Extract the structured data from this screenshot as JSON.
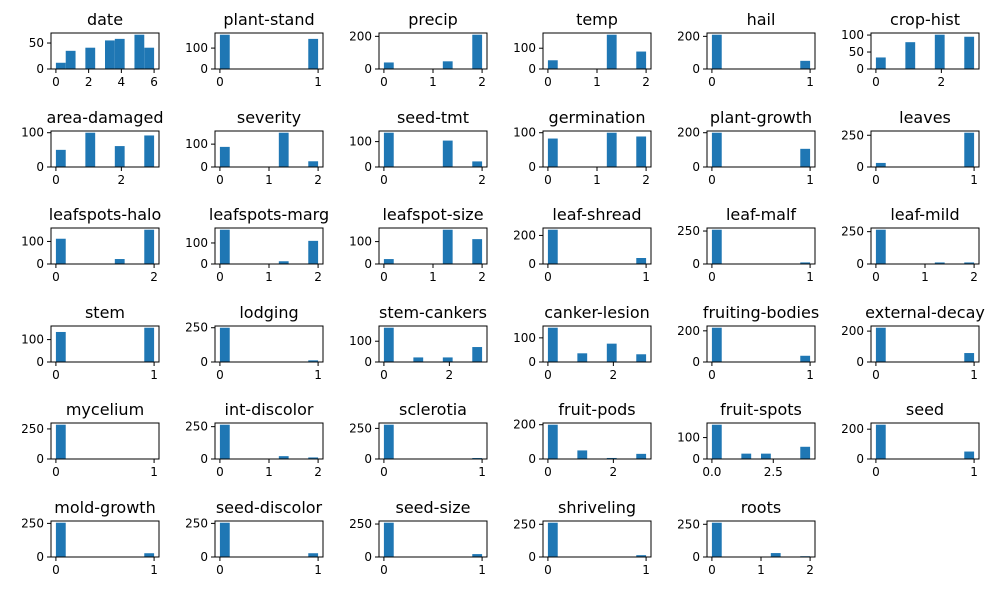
{
  "chart_data": [
    {
      "type": "bar",
      "title": "date",
      "xlim": [
        -0.3,
        6.3
      ],
      "ylim": [
        0,
        66
      ],
      "xticks": [
        0,
        2,
        4,
        6
      ],
      "yticks": [
        0,
        50
      ],
      "bins": [
        {
          "x0": 0,
          "x1": 0.6,
          "value": 12
        },
        {
          "x0": 0.6,
          "x1": 1.2,
          "value": 35
        },
        {
          "x0": 1.8,
          "x1": 2.4,
          "value": 41
        },
        {
          "x0": 3,
          "x1": 3.6,
          "value": 55
        },
        {
          "x0": 3.6,
          "x1": 4.2,
          "value": 58
        },
        {
          "x0": 4.8,
          "x1": 5.4,
          "value": 66
        },
        {
          "x0": 5.4,
          "x1": 6,
          "value": 41
        }
      ]
    },
    {
      "type": "bar",
      "title": "plant-stand",
      "xlim": [
        -0.05,
        1.05
      ],
      "ylim": [
        0,
        164
      ],
      "xticks": [
        0,
        1
      ],
      "yticks": [
        0,
        100
      ],
      "bins": [
        {
          "x0": 0,
          "x1": 0.1,
          "value": 164
        },
        {
          "x0": 0.9,
          "x1": 1,
          "value": 144
        }
      ]
    },
    {
      "type": "bar",
      "title": "precip",
      "xlim": [
        -0.1,
        2.1
      ],
      "ylim": [
        0,
        210
      ],
      "xticks": [
        0,
        1,
        2
      ],
      "yticks": [
        0,
        200
      ],
      "bins": [
        {
          "x0": 0,
          "x1": 0.2,
          "value": 40
        },
        {
          "x0": 1.2,
          "x1": 1.4,
          "value": 47
        },
        {
          "x0": 1.8,
          "x1": 2,
          "value": 210
        }
      ]
    },
    {
      "type": "bar",
      "title": "temp",
      "xlim": [
        -0.1,
        2.1
      ],
      "ylim": [
        0,
        165
      ],
      "xticks": [
        0,
        1,
        2
      ],
      "yticks": [
        0,
        100
      ],
      "bins": [
        {
          "x0": 0,
          "x1": 0.2,
          "value": 42
        },
        {
          "x0": 1.2,
          "x1": 1.4,
          "value": 165
        },
        {
          "x0": 1.8,
          "x1": 2,
          "value": 84
        }
      ]
    },
    {
      "type": "bar",
      "title": "hail",
      "xlim": [
        -0.05,
        1.05
      ],
      "ylim": [
        0,
        210
      ],
      "xticks": [
        0,
        1
      ],
      "yticks": [
        0,
        200
      ],
      "bins": [
        {
          "x0": 0,
          "x1": 0.1,
          "value": 210
        },
        {
          "x0": 0.9,
          "x1": 1,
          "value": 50
        }
      ]
    },
    {
      "type": "bar",
      "title": "crop-hist",
      "xlim": [
        -0.15,
        3.15
      ],
      "ylim": [
        0,
        101
      ],
      "xticks": [
        0,
        2
      ],
      "yticks": [
        0,
        50,
        100
      ],
      "bins": [
        {
          "x0": 0,
          "x1": 0.3,
          "value": 34
        },
        {
          "x0": 0.9,
          "x1": 1.2,
          "value": 79
        },
        {
          "x0": 1.8,
          "x1": 2.1,
          "value": 101
        },
        {
          "x0": 2.7,
          "x1": 3,
          "value": 95
        }
      ]
    },
    {
      "type": "bar",
      "title": "area-damaged",
      "xlim": [
        -0.15,
        3.15
      ],
      "ylim": [
        0,
        100
      ],
      "xticks": [
        0,
        2
      ],
      "yticks": [
        0,
        100
      ],
      "bins": [
        {
          "x0": 0,
          "x1": 0.3,
          "value": 50
        },
        {
          "x0": 0.9,
          "x1": 1.2,
          "value": 100
        },
        {
          "x0": 1.8,
          "x1": 2.1,
          "value": 61
        },
        {
          "x0": 2.7,
          "x1": 3,
          "value": 92
        }
      ]
    },
    {
      "type": "bar",
      "title": "severity",
      "xlim": [
        -0.1,
        2.1
      ],
      "ylim": [
        0,
        150
      ],
      "xticks": [
        0,
        1,
        2
      ],
      "yticks": [
        0,
        100
      ],
      "bins": [
        {
          "x0": 0,
          "x1": 0.2,
          "value": 88
        },
        {
          "x0": 1.2,
          "x1": 1.4,
          "value": 150
        },
        {
          "x0": 1.8,
          "x1": 2,
          "value": 25
        }
      ]
    },
    {
      "type": "bar",
      "title": "seed-tmt",
      "xlim": [
        -0.1,
        2.1
      ],
      "ylim": [
        0,
        135
      ],
      "xticks": [
        0,
        2
      ],
      "yticks": [
        0,
        100
      ],
      "bins": [
        {
          "x0": 0,
          "x1": 0.2,
          "value": 135
        },
        {
          "x0": 1.2,
          "x1": 1.4,
          "value": 104
        },
        {
          "x0": 1.8,
          "x1": 2,
          "value": 22
        }
      ]
    },
    {
      "type": "bar",
      "title": "germination",
      "xlim": [
        -0.1,
        2.1
      ],
      "ylim": [
        0,
        100
      ],
      "xticks": [
        0,
        1,
        2
      ],
      "yticks": [
        0,
        100
      ],
      "bins": [
        {
          "x0": 0,
          "x1": 0.2,
          "value": 83
        },
        {
          "x0": 1.2,
          "x1": 1.4,
          "value": 100
        },
        {
          "x0": 1.8,
          "x1": 2,
          "value": 89
        }
      ]
    },
    {
      "type": "bar",
      "title": "plant-growth",
      "xlim": [
        -0.05,
        1.05
      ],
      "ylim": [
        0,
        200
      ],
      "xticks": [
        0,
        1
      ],
      "yticks": [
        0,
        200
      ],
      "bins": [
        {
          "x0": 0,
          "x1": 0.1,
          "value": 200
        },
        {
          "x0": 0.9,
          "x1": 1,
          "value": 106
        }
      ]
    },
    {
      "type": "bar",
      "title": "leaves",
      "xlim": [
        -0.05,
        1.05
      ],
      "ylim": [
        0,
        270
      ],
      "xticks": [
        0,
        1
      ],
      "yticks": [
        0,
        250
      ],
      "bins": [
        {
          "x0": 0,
          "x1": 0.1,
          "value": 32
        },
        {
          "x0": 0.9,
          "x1": 1,
          "value": 270
        }
      ]
    },
    {
      "type": "bar",
      "title": "leafspots-halo",
      "xlim": [
        -0.1,
        2.1
      ],
      "ylim": [
        0,
        152
      ],
      "xticks": [
        0,
        2
      ],
      "yticks": [
        0,
        100
      ],
      "bins": [
        {
          "x0": 0,
          "x1": 0.2,
          "value": 112
        },
        {
          "x0": 1.2,
          "x1": 1.4,
          "value": 22
        },
        {
          "x0": 1.8,
          "x1": 2,
          "value": 152
        }
      ]
    },
    {
      "type": "bar",
      "title": "leafspots-marg",
      "xlim": [
        -0.1,
        2.1
      ],
      "ylim": [
        0,
        163
      ],
      "xticks": [
        0,
        1,
        2
      ],
      "yticks": [
        0,
        100
      ],
      "bins": [
        {
          "x0": 0,
          "x1": 0.2,
          "value": 163
        },
        {
          "x0": 1.2,
          "x1": 1.4,
          "value": 13
        },
        {
          "x0": 1.8,
          "x1": 2,
          "value": 110
        }
      ]
    },
    {
      "type": "bar",
      "title": "leafspot-size",
      "xlim": [
        -0.1,
        2.1
      ],
      "ylim": [
        0,
        153
      ],
      "xticks": [
        0,
        1,
        2
      ],
      "yticks": [
        0,
        100
      ],
      "bins": [
        {
          "x0": 0,
          "x1": 0.2,
          "value": 22
        },
        {
          "x0": 1.2,
          "x1": 1.4,
          "value": 153
        },
        {
          "x0": 1.8,
          "x1": 2,
          "value": 111
        }
      ]
    },
    {
      "type": "bar",
      "title": "leaf-shread",
      "xlim": [
        -0.05,
        1.05
      ],
      "ylim": [
        0,
        240
      ],
      "xticks": [
        0,
        1
      ],
      "yticks": [
        0,
        200
      ],
      "bins": [
        {
          "x0": 0,
          "x1": 0.1,
          "value": 240
        },
        {
          "x0": 0.9,
          "x1": 1,
          "value": 42
        }
      ]
    },
    {
      "type": "bar",
      "title": "leaf-malf",
      "xlim": [
        -0.05,
        1.05
      ],
      "ylim": [
        0,
        260
      ],
      "xticks": [
        0,
        1
      ],
      "yticks": [
        0,
        250
      ],
      "bins": [
        {
          "x0": 0,
          "x1": 0.1,
          "value": 260
        },
        {
          "x0": 0.9,
          "x1": 1,
          "value": 12
        }
      ]
    },
    {
      "type": "bar",
      "title": "leaf-mild",
      "xlim": [
        -0.1,
        2.1
      ],
      "ylim": [
        0,
        265
      ],
      "xticks": [
        0,
        1,
        2
      ],
      "yticks": [
        0,
        250
      ],
      "bins": [
        {
          "x0": 0,
          "x1": 0.2,
          "value": 265
        },
        {
          "x0": 1.2,
          "x1": 1.4,
          "value": 12
        },
        {
          "x0": 1.8,
          "x1": 2,
          "value": 12
        }
      ]
    },
    {
      "type": "bar",
      "title": "stem",
      "xlim": [
        -0.05,
        1.05
      ],
      "ylim": [
        0,
        153
      ],
      "xticks": [
        0,
        1
      ],
      "yticks": [
        0,
        100
      ],
      "bins": [
        {
          "x0": 0,
          "x1": 0.1,
          "value": 134
        },
        {
          "x0": 0.9,
          "x1": 1,
          "value": 153
        }
      ]
    },
    {
      "type": "bar",
      "title": "lodging",
      "xlim": [
        -0.05,
        1.05
      ],
      "ylim": [
        0,
        250
      ],
      "xticks": [
        0,
        1
      ],
      "yticks": [
        0,
        250
      ],
      "bins": [
        {
          "x0": 0,
          "x1": 0.1,
          "value": 250
        },
        {
          "x0": 0.9,
          "x1": 1,
          "value": 12
        }
      ]
    },
    {
      "type": "bar",
      "title": "stem-cankers",
      "xlim": [
        -0.15,
        3.15
      ],
      "ylim": [
        0,
        165
      ],
      "xticks": [
        0,
        2
      ],
      "yticks": [
        0,
        100
      ],
      "bins": [
        {
          "x0": 0,
          "x1": 0.3,
          "value": 165
        },
        {
          "x0": 0.9,
          "x1": 1.2,
          "value": 22
        },
        {
          "x0": 1.8,
          "x1": 2.1,
          "value": 22
        },
        {
          "x0": 2.7,
          "x1": 3,
          "value": 72
        }
      ]
    },
    {
      "type": "bar",
      "title": "canker-lesion",
      "xlim": [
        -0.15,
        3.15
      ],
      "ylim": [
        0,
        142
      ],
      "xticks": [
        0,
        2
      ],
      "yticks": [
        0,
        100
      ],
      "bins": [
        {
          "x0": 0,
          "x1": 0.3,
          "value": 142
        },
        {
          "x0": 0.9,
          "x1": 1.2,
          "value": 36
        },
        {
          "x0": 1.8,
          "x1": 2.1,
          "value": 76
        },
        {
          "x0": 2.7,
          "x1": 3,
          "value": 32
        }
      ]
    },
    {
      "type": "bar",
      "title": "fruiting-bodies",
      "xlim": [
        -0.05,
        1.05
      ],
      "ylim": [
        0,
        220
      ],
      "xticks": [
        0,
        1
      ],
      "yticks": [
        0,
        200
      ],
      "bins": [
        {
          "x0": 0,
          "x1": 0.1,
          "value": 220
        },
        {
          "x0": 0.9,
          "x1": 1,
          "value": 40
        }
      ]
    },
    {
      "type": "bar",
      "title": "external-decay",
      "xlim": [
        -0.05,
        1.05
      ],
      "ylim": [
        0,
        222
      ],
      "xticks": [
        0,
        1
      ],
      "yticks": [
        0,
        200
      ],
      "bins": [
        {
          "x0": 0,
          "x1": 0.1,
          "value": 222
        },
        {
          "x0": 0.9,
          "x1": 1,
          "value": 58
        }
      ]
    },
    {
      "type": "bar",
      "title": "mycelium",
      "xlim": [
        -0.05,
        1.05
      ],
      "ylim": [
        0,
        285
      ],
      "xticks": [
        0,
        1
      ],
      "yticks": [
        0,
        250
      ],
      "bins": [
        {
          "x0": 0,
          "x1": 0.1,
          "value": 285
        },
        {
          "x0": 0.9,
          "x1": 1,
          "value": 2
        }
      ]
    },
    {
      "type": "bar",
      "title": "int-discolor",
      "xlim": [
        -0.1,
        2.1
      ],
      "ylim": [
        0,
        265
      ],
      "xticks": [
        0,
        1,
        2
      ],
      "yticks": [
        0,
        250
      ],
      "bins": [
        {
          "x0": 0,
          "x1": 0.2,
          "value": 265
        },
        {
          "x0": 1.2,
          "x1": 1.4,
          "value": 22
        },
        {
          "x0": 1.8,
          "x1": 2,
          "value": 12
        }
      ]
    },
    {
      "type": "bar",
      "title": "sclerotia",
      "xlim": [
        -0.05,
        1.05
      ],
      "ylim": [
        0,
        280
      ],
      "xticks": [
        0,
        1
      ],
      "yticks": [
        0,
        250
      ],
      "bins": [
        {
          "x0": 0,
          "x1": 0.1,
          "value": 280
        },
        {
          "x0": 0.9,
          "x1": 1,
          "value": 8
        }
      ]
    },
    {
      "type": "bar",
      "title": "fruit-pods",
      "xlim": [
        -0.15,
        3.15
      ],
      "ylim": [
        0,
        200
      ],
      "xticks": [
        0,
        2
      ],
      "yticks": [
        0,
        200
      ],
      "bins": [
        {
          "x0": 0,
          "x1": 0.3,
          "value": 200
        },
        {
          "x0": 0.9,
          "x1": 1.2,
          "value": 50
        },
        {
          "x0": 1.8,
          "x1": 2.1,
          "value": 6
        },
        {
          "x0": 2.7,
          "x1": 3,
          "value": 30
        }
      ]
    },
    {
      "type": "bar",
      "title": "fruit-spots",
      "xlim": [
        -0.2,
        4.2
      ],
      "ylim": [
        0,
        160
      ],
      "xticks": [
        0,
        2.5
      ],
      "xtick_labels": [
        "0.0",
        "2.5"
      ],
      "yticks": [
        0,
        100
      ],
      "bins": [
        {
          "x0": 0,
          "x1": 0.4,
          "value": 160
        },
        {
          "x0": 1.2,
          "x1": 1.6,
          "value": 25
        },
        {
          "x0": 2,
          "x1": 2.4,
          "value": 25
        },
        {
          "x0": 3.6,
          "x1": 4,
          "value": 57
        }
      ]
    },
    {
      "type": "bar",
      "title": "seed",
      "xlim": [
        -0.05,
        1.05
      ],
      "ylim": [
        0,
        230
      ],
      "xticks": [
        0,
        1
      ],
      "yticks": [
        0,
        200
      ],
      "bins": [
        {
          "x0": 0,
          "x1": 0.1,
          "value": 230
        },
        {
          "x0": 0.9,
          "x1": 1,
          "value": 50
        }
      ]
    },
    {
      "type": "bar",
      "title": "mold-growth",
      "xlim": [
        -0.05,
        1.05
      ],
      "ylim": [
        0,
        255
      ],
      "xticks": [
        0,
        1
      ],
      "yticks": [
        0,
        250
      ],
      "bins": [
        {
          "x0": 0,
          "x1": 0.1,
          "value": 255
        },
        {
          "x0": 0.9,
          "x1": 1,
          "value": 28
        }
      ]
    },
    {
      "type": "bar",
      "title": "seed-discolor",
      "xlim": [
        -0.05,
        1.05
      ],
      "ylim": [
        0,
        255
      ],
      "xticks": [
        0,
        1
      ],
      "yticks": [
        0,
        250
      ],
      "bins": [
        {
          "x0": 0,
          "x1": 0.1,
          "value": 255
        },
        {
          "x0": 0.9,
          "x1": 1,
          "value": 28
        }
      ]
    },
    {
      "type": "bar",
      "title": "seed-size",
      "xlim": [
        -0.05,
        1.05
      ],
      "ylim": [
        0,
        260
      ],
      "xticks": [
        0,
        1
      ],
      "yticks": [
        0,
        250
      ],
      "bins": [
        {
          "x0": 0,
          "x1": 0.1,
          "value": 260
        },
        {
          "x0": 0.9,
          "x1": 1,
          "value": 22
        }
      ]
    },
    {
      "type": "bar",
      "title": "shriveling",
      "xlim": [
        -0.05,
        1.05
      ],
      "ylim": [
        0,
        262
      ],
      "xticks": [
        0,
        1
      ],
      "yticks": [
        0,
        250
      ],
      "bins": [
        {
          "x0": 0,
          "x1": 0.1,
          "value": 262
        },
        {
          "x0": 0.9,
          "x1": 1,
          "value": 14
        }
      ]
    },
    {
      "type": "bar",
      "title": "roots",
      "xlim": [
        -0.1,
        2.1
      ],
      "ylim": [
        0,
        262
      ],
      "xticks": [
        0,
        1,
        2
      ],
      "yticks": [
        0,
        250
      ],
      "bins": [
        {
          "x0": 0,
          "x1": 0.2,
          "value": 262
        },
        {
          "x0": 1.2,
          "x1": 1.4,
          "value": 30
        },
        {
          "x0": 1.8,
          "x1": 2,
          "value": 6
        }
      ]
    }
  ],
  "colors": {
    "bar": "#1f77b4",
    "axis": "#000000",
    "background": "#ffffff"
  }
}
